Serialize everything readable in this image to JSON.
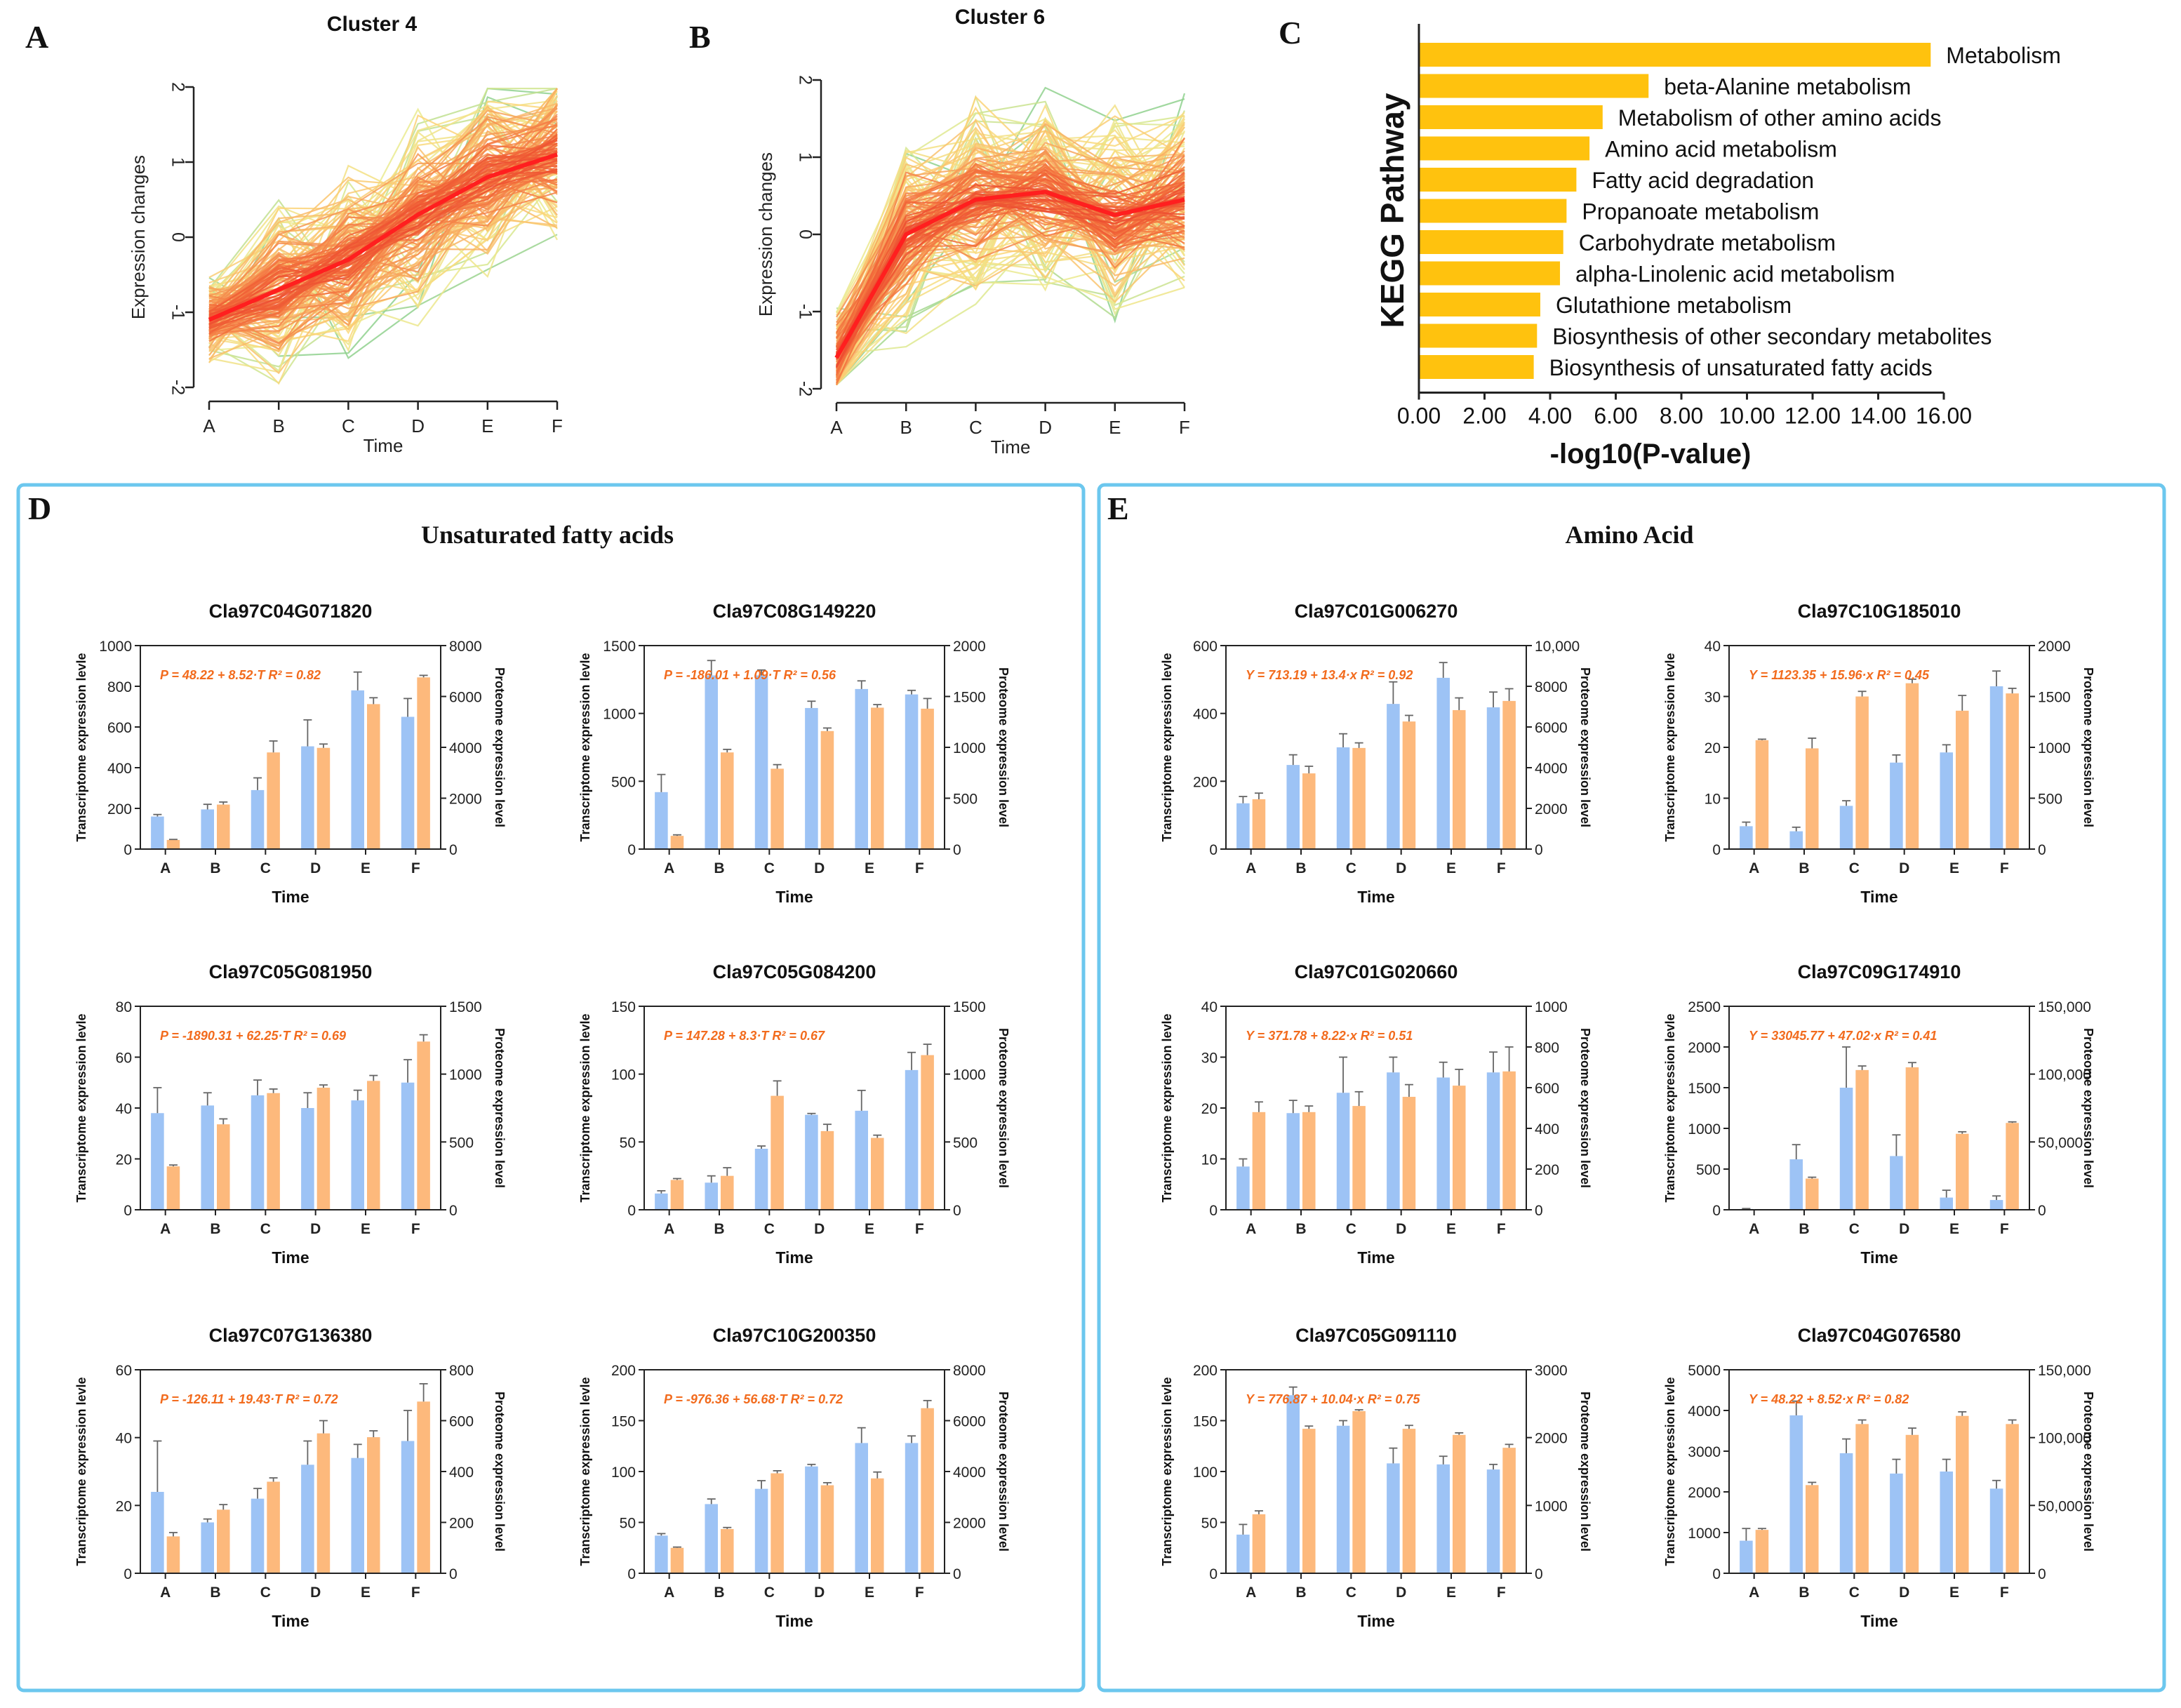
{
  "panels": {
    "A": "A",
    "B": "B",
    "C": "C",
    "D": "D",
    "E": "E"
  },
  "colors": {
    "cluster_center": "#ff1f1f",
    "bar_transcript": "#9dc3f5",
    "bar_proteome": "#fdb97c",
    "kegg_bar": "#ffc20e",
    "box_border": "#6cc7ee",
    "equation": "#f26b1d"
  },
  "chart_data": [
    {
      "id": "cluster4",
      "type": "line",
      "title": "Cluster 4",
      "xlabel": "Time",
      "ylabel": "Expression changes",
      "categories": [
        "A",
        "B",
        "C",
        "D",
        "E",
        "F"
      ],
      "ylim": [
        -2,
        2
      ],
      "yticks": [
        -2,
        -1,
        0,
        1,
        2
      ],
      "center": [
        -1.1,
        -0.7,
        -0.3,
        0.3,
        0.8,
        1.1
      ]
    },
    {
      "id": "cluster6",
      "type": "line",
      "title": "Cluster 6",
      "xlabel": "Time",
      "ylabel": "Expression changes",
      "categories": [
        "A",
        "B",
        "C",
        "D",
        "E",
        "F"
      ],
      "ylim": [
        -2,
        2
      ],
      "yticks": [
        -2,
        -1,
        0,
        1,
        2
      ],
      "center": [
        -1.6,
        0.0,
        0.45,
        0.55,
        0.25,
        0.45
      ]
    },
    {
      "id": "kegg",
      "type": "bar",
      "orientation": "horizontal",
      "xlabel": "-log10(P-value)",
      "ylabel": "KEGG Pathway",
      "xlim": [
        0,
        16
      ],
      "xticks": [
        "0.00",
        "2.00",
        "4.00",
        "6.00",
        "8.00",
        "10.00",
        "12.00",
        "14.00",
        "16.00"
      ],
      "categories": [
        "Metabolism",
        "beta-Alanine metabolism",
        "Metabolism of other amino acids",
        "Amino acid metabolism",
        "Fatty acid degradation",
        "Propanoate metabolism",
        "Carbohydrate metabolism",
        "alpha-Linolenic acid metabolism",
        "Glutathione metabolism",
        "Biosynthesis of other secondary metabolites",
        "Biosynthesis of unsaturated fatty acids"
      ],
      "values": [
        15.6,
        7.0,
        5.6,
        5.2,
        4.8,
        4.5,
        4.4,
        4.3,
        3.7,
        3.6,
        3.5
      ]
    }
  ],
  "groups": [
    {
      "id": "D",
      "title": "Unsaturated fatty acids"
    },
    {
      "id": "E",
      "title": "Amino Acid"
    }
  ],
  "barcharts": [
    {
      "title": "Cla97C04G071820",
      "eq": "P = 48.22 + 8.52·T  R² = 0.82",
      "ymax": 1000,
      "yticks": [
        "0",
        "200",
        "400",
        "600",
        "800",
        "1000"
      ],
      "rmax": 8000,
      "rticks": [
        "0",
        "2000",
        "4000",
        "6000",
        "8000"
      ],
      "t": [
        160,
        195,
        290,
        505,
        780,
        650
      ],
      "terr": [
        10,
        25,
        60,
        130,
        90,
        90
      ],
      "p": [
        360,
        1750,
        3800,
        3980,
        5700,
        6750
      ],
      "perr": [
        20,
        100,
        450,
        150,
        250,
        80
      ]
    },
    {
      "title": "Cla97C08G149220",
      "eq": "P = -186.01 + 1.09·T  R² = 0.56",
      "ymax": 1500,
      "yticks": [
        "0",
        "500",
        "1000",
        "1500"
      ],
      "rmax": 2000,
      "rticks": [
        "0",
        "500",
        "1000",
        "1500",
        "2000"
      ],
      "t": [
        420,
        1280,
        1280,
        1040,
        1180,
        1140
      ],
      "terr": [
        130,
        110,
        40,
        50,
        60,
        30
      ],
      "p": [
        130,
        950,
        790,
        1160,
        1390,
        1380
      ],
      "perr": [
        10,
        30,
        40,
        30,
        30,
        100
      ]
    },
    {
      "title": "Cla97C05G081950",
      "eq": "P = -1890.31 + 62.25·T  R² = 0.69",
      "ymax": 80,
      "yticks": [
        "0",
        "20",
        "40",
        "60",
        "80"
      ],
      "rmax": 1500,
      "rticks": [
        "0",
        "500",
        "1000",
        "1500"
      ],
      "t": [
        38,
        41,
        45,
        40,
        43,
        50
      ],
      "terr": [
        10,
        5,
        6,
        6,
        4,
        9
      ],
      "p": [
        320,
        630,
        860,
        900,
        950,
        1240
      ],
      "perr": [
        10,
        40,
        30,
        20,
        40,
        50
      ]
    },
    {
      "title": "Cla97C05G084200",
      "eq": "P = 147.28 + 8.3·T  R² = 0.67",
      "ymax": 150,
      "yticks": [
        "0",
        "50",
        "100",
        "150"
      ],
      "rmax": 1500,
      "rticks": [
        "0",
        "500",
        "1000",
        "1500"
      ],
      "t": [
        12,
        20,
        45,
        70,
        73,
        103
      ],
      "terr": [
        2,
        5,
        2,
        1,
        15,
        13
      ],
      "p": [
        220,
        250,
        840,
        580,
        530,
        1140
      ],
      "perr": [
        10,
        60,
        110,
        50,
        20,
        80
      ]
    },
    {
      "title": "Cla97C07G136380",
      "eq": "P = -126.11 + 19.43·T  R² = 0.72",
      "ymax": 60,
      "yticks": [
        "0",
        "20",
        "40",
        "60"
      ],
      "rmax": 800,
      "rticks": [
        "0",
        "200",
        "400",
        "600",
        "800"
      ],
      "t": [
        24,
        15,
        22,
        32,
        34,
        39
      ],
      "terr": [
        15,
        1,
        3,
        7,
        4,
        9
      ],
      "p": [
        145,
        250,
        360,
        550,
        535,
        675
      ],
      "perr": [
        15,
        20,
        15,
        50,
        25,
        70
      ]
    },
    {
      "title": "Cla97C10G200350",
      "eq": "P = -976.36 + 56.68·T  R² = 0.72",
      "ymax": 200,
      "yticks": [
        "0",
        "50",
        "100",
        "150",
        "200"
      ],
      "rmax": 8000,
      "rticks": [
        "0",
        "2000",
        "4000",
        "6000",
        "8000"
      ],
      "t": [
        37,
        68,
        83,
        105,
        128,
        128
      ],
      "terr": [
        2,
        5,
        8,
        2,
        15,
        7
      ],
      "p": [
        1000,
        1740,
        3930,
        3460,
        3730,
        6490
      ],
      "perr": [
        30,
        60,
        100,
        100,
        250,
        300
      ]
    },
    {
      "title": "Cla97C01G006270",
      "eq": "Y = 713.19 + 13.4·x  R² = 0.92",
      "ymax": 600,
      "yticks": [
        "0",
        "200",
        "400",
        "600"
      ],
      "rmax": 10000,
      "rticks": [
        "0",
        "2000",
        "4000",
        "6000",
        "8000",
        "10,000"
      ],
      "t": [
        135,
        248,
        300,
        428,
        505,
        418
      ],
      "terr": [
        20,
        30,
        40,
        65,
        45,
        45
      ],
      "p": [
        2450,
        3720,
        4970,
        6270,
        6830,
        7280
      ],
      "perr": [
        300,
        350,
        250,
        300,
        600,
        600
      ]
    },
    {
      "title": "Cla97C10G185010",
      "eq": "Y = 1123.35 + 15.96·x  R² = 0.45",
      "ymax": 40,
      "yticks": [
        "0",
        "10",
        "20",
        "30",
        "40"
      ],
      "rmax": 2000,
      "rticks": [
        "0",
        "500",
        "1000",
        "1500",
        "2000"
      ],
      "t": [
        4.5,
        3.5,
        8.5,
        17,
        19,
        32
      ],
      "terr": [
        0.8,
        0.8,
        1,
        1.5,
        1.5,
        3
      ],
      "p": [
        1070,
        990,
        1500,
        1630,
        1360,
        1530
      ],
      "perr": [
        10,
        100,
        50,
        40,
        150,
        50
      ]
    },
    {
      "title": "Cla97C01G020660",
      "eq": "Y = 371.78 + 8.22·x  R² = 0.51",
      "ymax": 40,
      "yticks": [
        "0",
        "10",
        "20",
        "30",
        "40"
      ],
      "rmax": 1000,
      "rticks": [
        "0",
        "200",
        "400",
        "600",
        "800",
        "1000"
      ],
      "t": [
        8.5,
        19,
        23,
        27,
        26,
        27
      ],
      "terr": [
        1.5,
        2.5,
        7,
        3,
        3,
        4
      ],
      "p": [
        480,
        480,
        510,
        555,
        610,
        680
      ],
      "perr": [
        50,
        30,
        70,
        60,
        80,
        120
      ]
    },
    {
      "title": "Cla97C09G174910",
      "eq": "Y = 33045.77 + 47.02·x  R² = 0.41",
      "ymax": 2500,
      "yticks": [
        "0",
        "500",
        "1000",
        "1500",
        "2000",
        "2500"
      ],
      "rmax": 150000,
      "rticks": [
        "0",
        "50,000",
        "100,000",
        "150,000"
      ],
      "t": [
        10,
        620,
        1500,
        660,
        150,
        120
      ],
      "terr": [
        5,
        180,
        500,
        260,
        90,
        50
      ],
      "p": [
        0,
        23000,
        103000,
        105000,
        56000,
        64000
      ],
      "perr": [
        0,
        1000,
        3000,
        3500,
        1500,
        800
      ]
    },
    {
      "title": "Cla97C05G091110",
      "eq": "Y = 776.87 + 10.04·x  R² = 0.75",
      "ymax": 200,
      "yticks": [
        "0",
        "50",
        "100",
        "150",
        "200"
      ],
      "rmax": 3000,
      "rticks": [
        "0",
        "1000",
        "2000",
        "3000"
      ],
      "t": [
        38,
        175,
        145,
        108,
        107,
        102
      ],
      "terr": [
        10,
        8,
        5,
        15,
        8,
        5
      ],
      "p": [
        870,
        2130,
        2390,
        2130,
        2040,
        1850
      ],
      "perr": [
        50,
        40,
        20,
        50,
        30,
        50
      ]
    },
    {
      "title": "Cla97C04G076580",
      "eq": "Y = 48.22 + 8.52·x  R² = 0.82",
      "ymax": 5000,
      "yticks": [
        "0",
        "1000",
        "2000",
        "3000",
        "4000",
        "5000"
      ],
      "rmax": 150000,
      "rticks": [
        "0",
        "50,000",
        "100,000",
        "150,000"
      ],
      "t": [
        800,
        3880,
        2950,
        2450,
        2500,
        2080
      ],
      "terr": [
        300,
        350,
        350,
        350,
        300,
        200
      ],
      "p": [
        32000,
        65000,
        110000,
        102000,
        116000,
        110000
      ],
      "perr": [
        1000,
        2000,
        3000,
        5000,
        3000,
        3000
      ]
    }
  ],
  "bar_axis": {
    "categories": [
      "A",
      "B",
      "C",
      "D",
      "E",
      "F"
    ],
    "xlabel": "Time",
    "ylabel": "Transcriptome expression levle",
    "rlabel": "Proteome expression level"
  }
}
